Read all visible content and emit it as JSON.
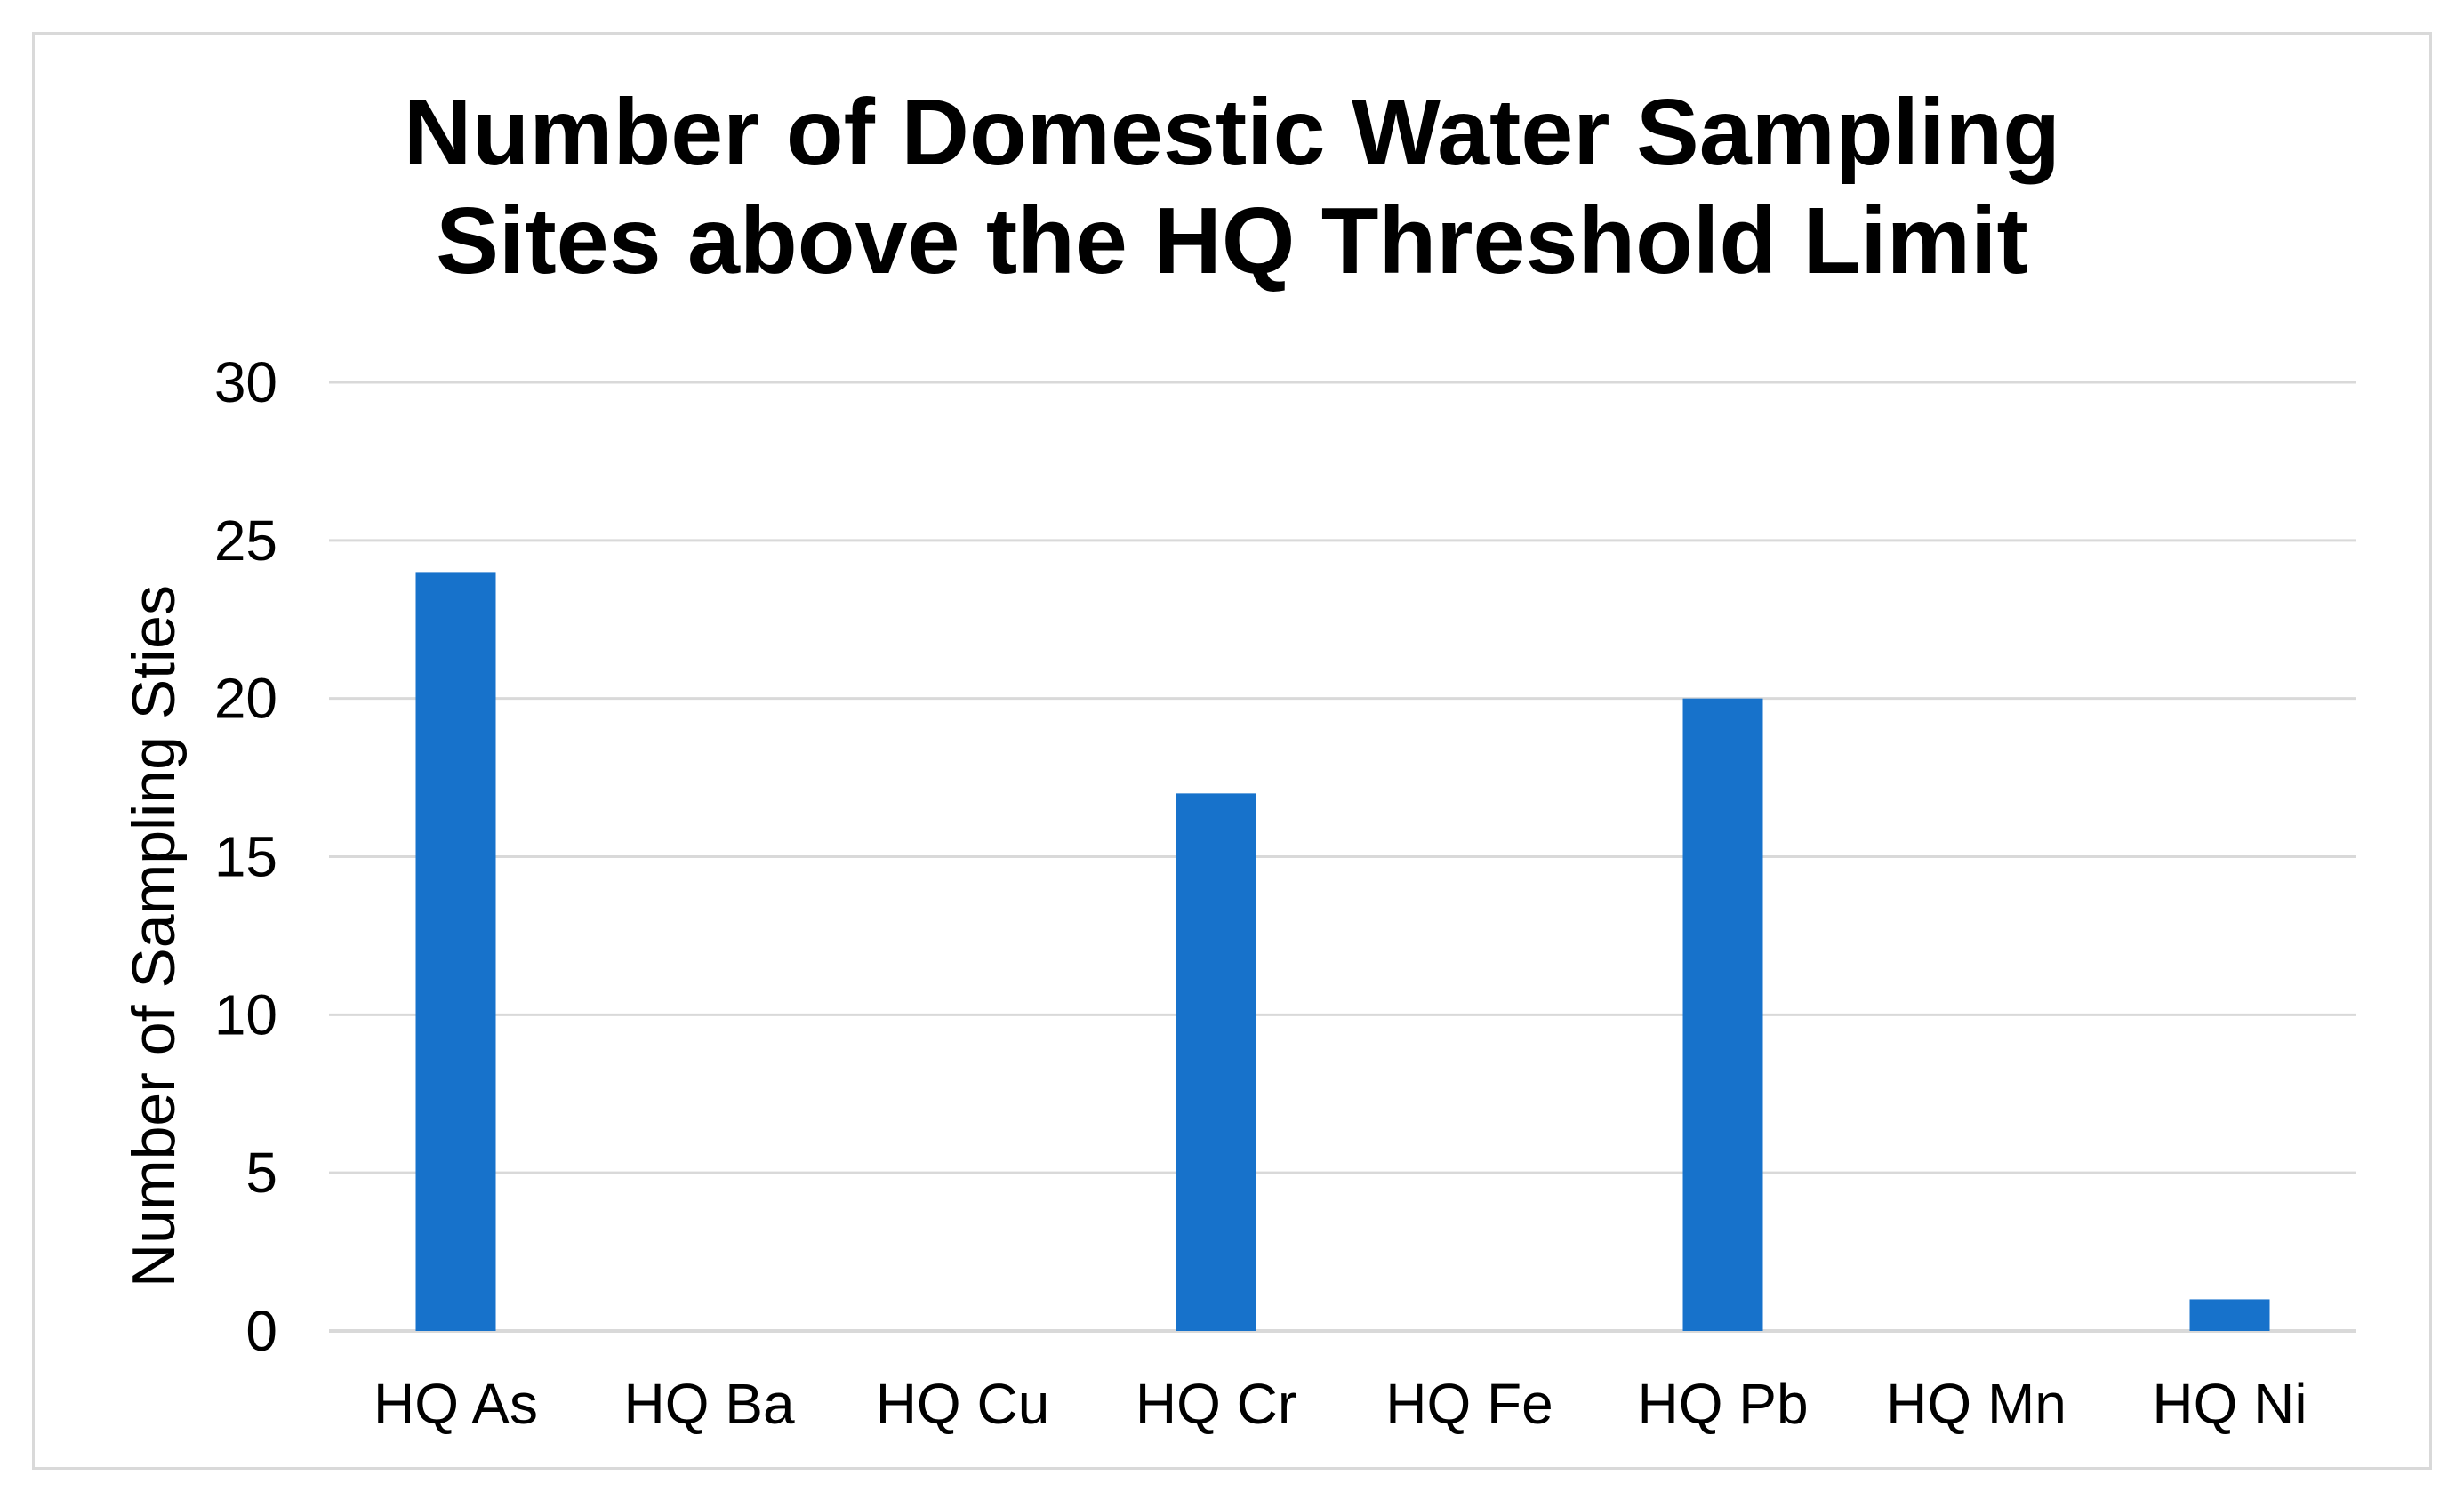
{
  "chart_data": {
    "type": "bar",
    "title_lines": [
      "Number of Domestic Water Sampling",
      "Sites above the HQ Threshold Limit"
    ],
    "categories": [
      "HQ As",
      "HQ Ba",
      "HQ Cu",
      "HQ Cr",
      "HQ Fe",
      "HQ Pb",
      "HQ Mn",
      "HQ Ni"
    ],
    "values": [
      24,
      0,
      0,
      17,
      0,
      20,
      0,
      1
    ],
    "xlabel": "",
    "ylabel": "Number of Sampling Sties",
    "ylim": [
      0,
      30
    ],
    "yticks": [
      0,
      5,
      10,
      15,
      20,
      25,
      30
    ],
    "grid": true,
    "legend": "none",
    "bar_color": "#1772CB",
    "grid_color": "#D9D9D9"
  }
}
